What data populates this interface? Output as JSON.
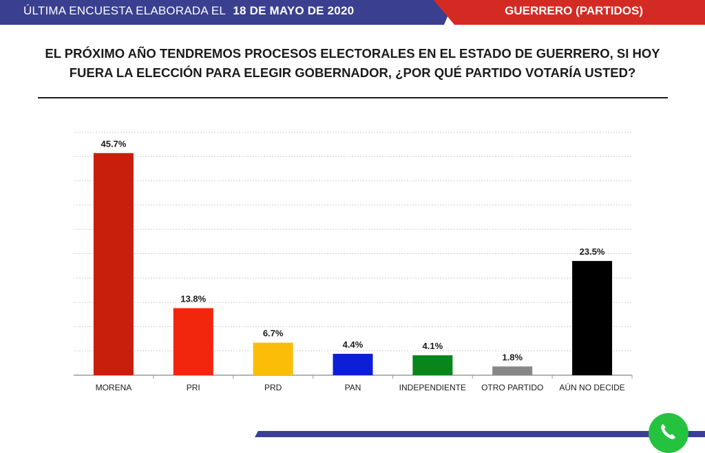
{
  "header": {
    "left_label": "ÚLTIMA ENCUESTA ELABORADA EL",
    "date": "18 DE MAYO DE 2020",
    "right_label": "GUERRERO (PARTIDOS)",
    "colors": {
      "navy": "#3a3f8f",
      "red": "#d42a24"
    }
  },
  "question": {
    "line1": "EL PRÓXIMO AÑO TENDREMOS PROCESOS ELECTORALES EN EL ESTADO DE GUERRERO, SI HOY",
    "line2": "FUERA LA ELECCIÓN PARA ELEGIR GOBERNADOR, ¿POR QUÉ PARTIDO VOTARÍA USTED?"
  },
  "footer": {
    "icon": "whatsapp-icon"
  },
  "chart_data": {
    "type": "bar",
    "title": "",
    "xlabel": "",
    "ylabel": "",
    "ylim": [
      0,
      50
    ],
    "grid": true,
    "legend": "none",
    "categories": [
      "MORENA",
      "PRI",
      "PRD",
      "PAN",
      "INDEPENDIENTE",
      "OTRO PARTIDO",
      "AÚN NO DECIDE"
    ],
    "values": [
      45.7,
      13.8,
      6.7,
      4.4,
      4.1,
      1.8,
      23.5
    ],
    "value_labels": [
      "45.7%",
      "13.8%",
      "6.7%",
      "4.4%",
      "4.1%",
      "1.8%",
      "23.5%"
    ],
    "colors": [
      "#c81e0c",
      "#f2260c",
      "#fbbd08",
      "#0c1fd6",
      "#08861c",
      "#878787",
      "#000000"
    ]
  }
}
